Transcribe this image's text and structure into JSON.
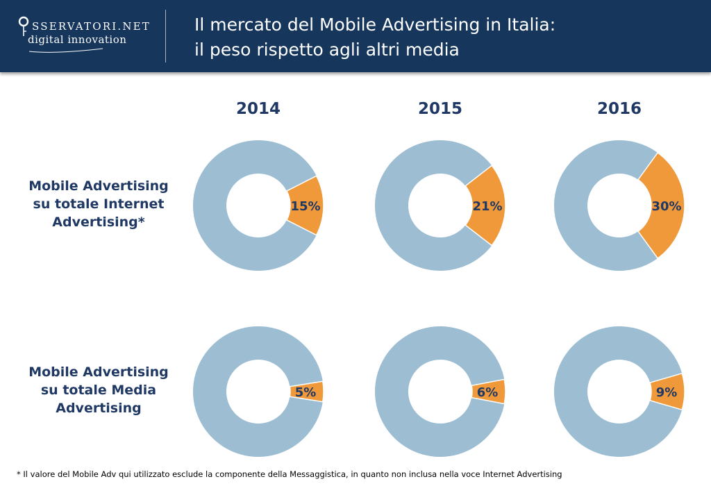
{
  "header": {
    "logo_name": "SSERVATORI.NET",
    "logo_subtitle": "digital innovation",
    "title_line1": "Il mercato del Mobile Advertising in Italia:",
    "title_line2": "il peso rispetto agli altri media"
  },
  "colors": {
    "header_bg": "#16365c",
    "remainder": "#9dbdd2",
    "highlight": "#f0993a",
    "text": "#1f3864"
  },
  "chart_data": {
    "type": "pie",
    "subtype": "donut",
    "title": "Il mercato del Mobile Advertising in Italia: il peso rispetto agli altri media",
    "years": [
      "2014",
      "2015",
      "2016"
    ],
    "series": [
      {
        "name": "Mobile Advertising su totale Internet Advertising*",
        "label_lines": [
          "Mobile Advertising",
          "su totale Internet",
          "Advertising*"
        ],
        "values": [
          15,
          21,
          30
        ],
        "labels": [
          "15%",
          "21%",
          "30%"
        ]
      },
      {
        "name": "Mobile Advertising su totale Media Advertising",
        "label_lines": [
          "Mobile Advertising",
          "su totale Media",
          "Advertising"
        ],
        "values": [
          5,
          6,
          9
        ],
        "labels": [
          "5%",
          "6%",
          "9%"
        ]
      }
    ]
  },
  "footnote": "* Il valore del Mobile Adv qui utilizzato esclude la componente della Messaggistica, in quanto non inclusa nella voce Internet Advertising"
}
